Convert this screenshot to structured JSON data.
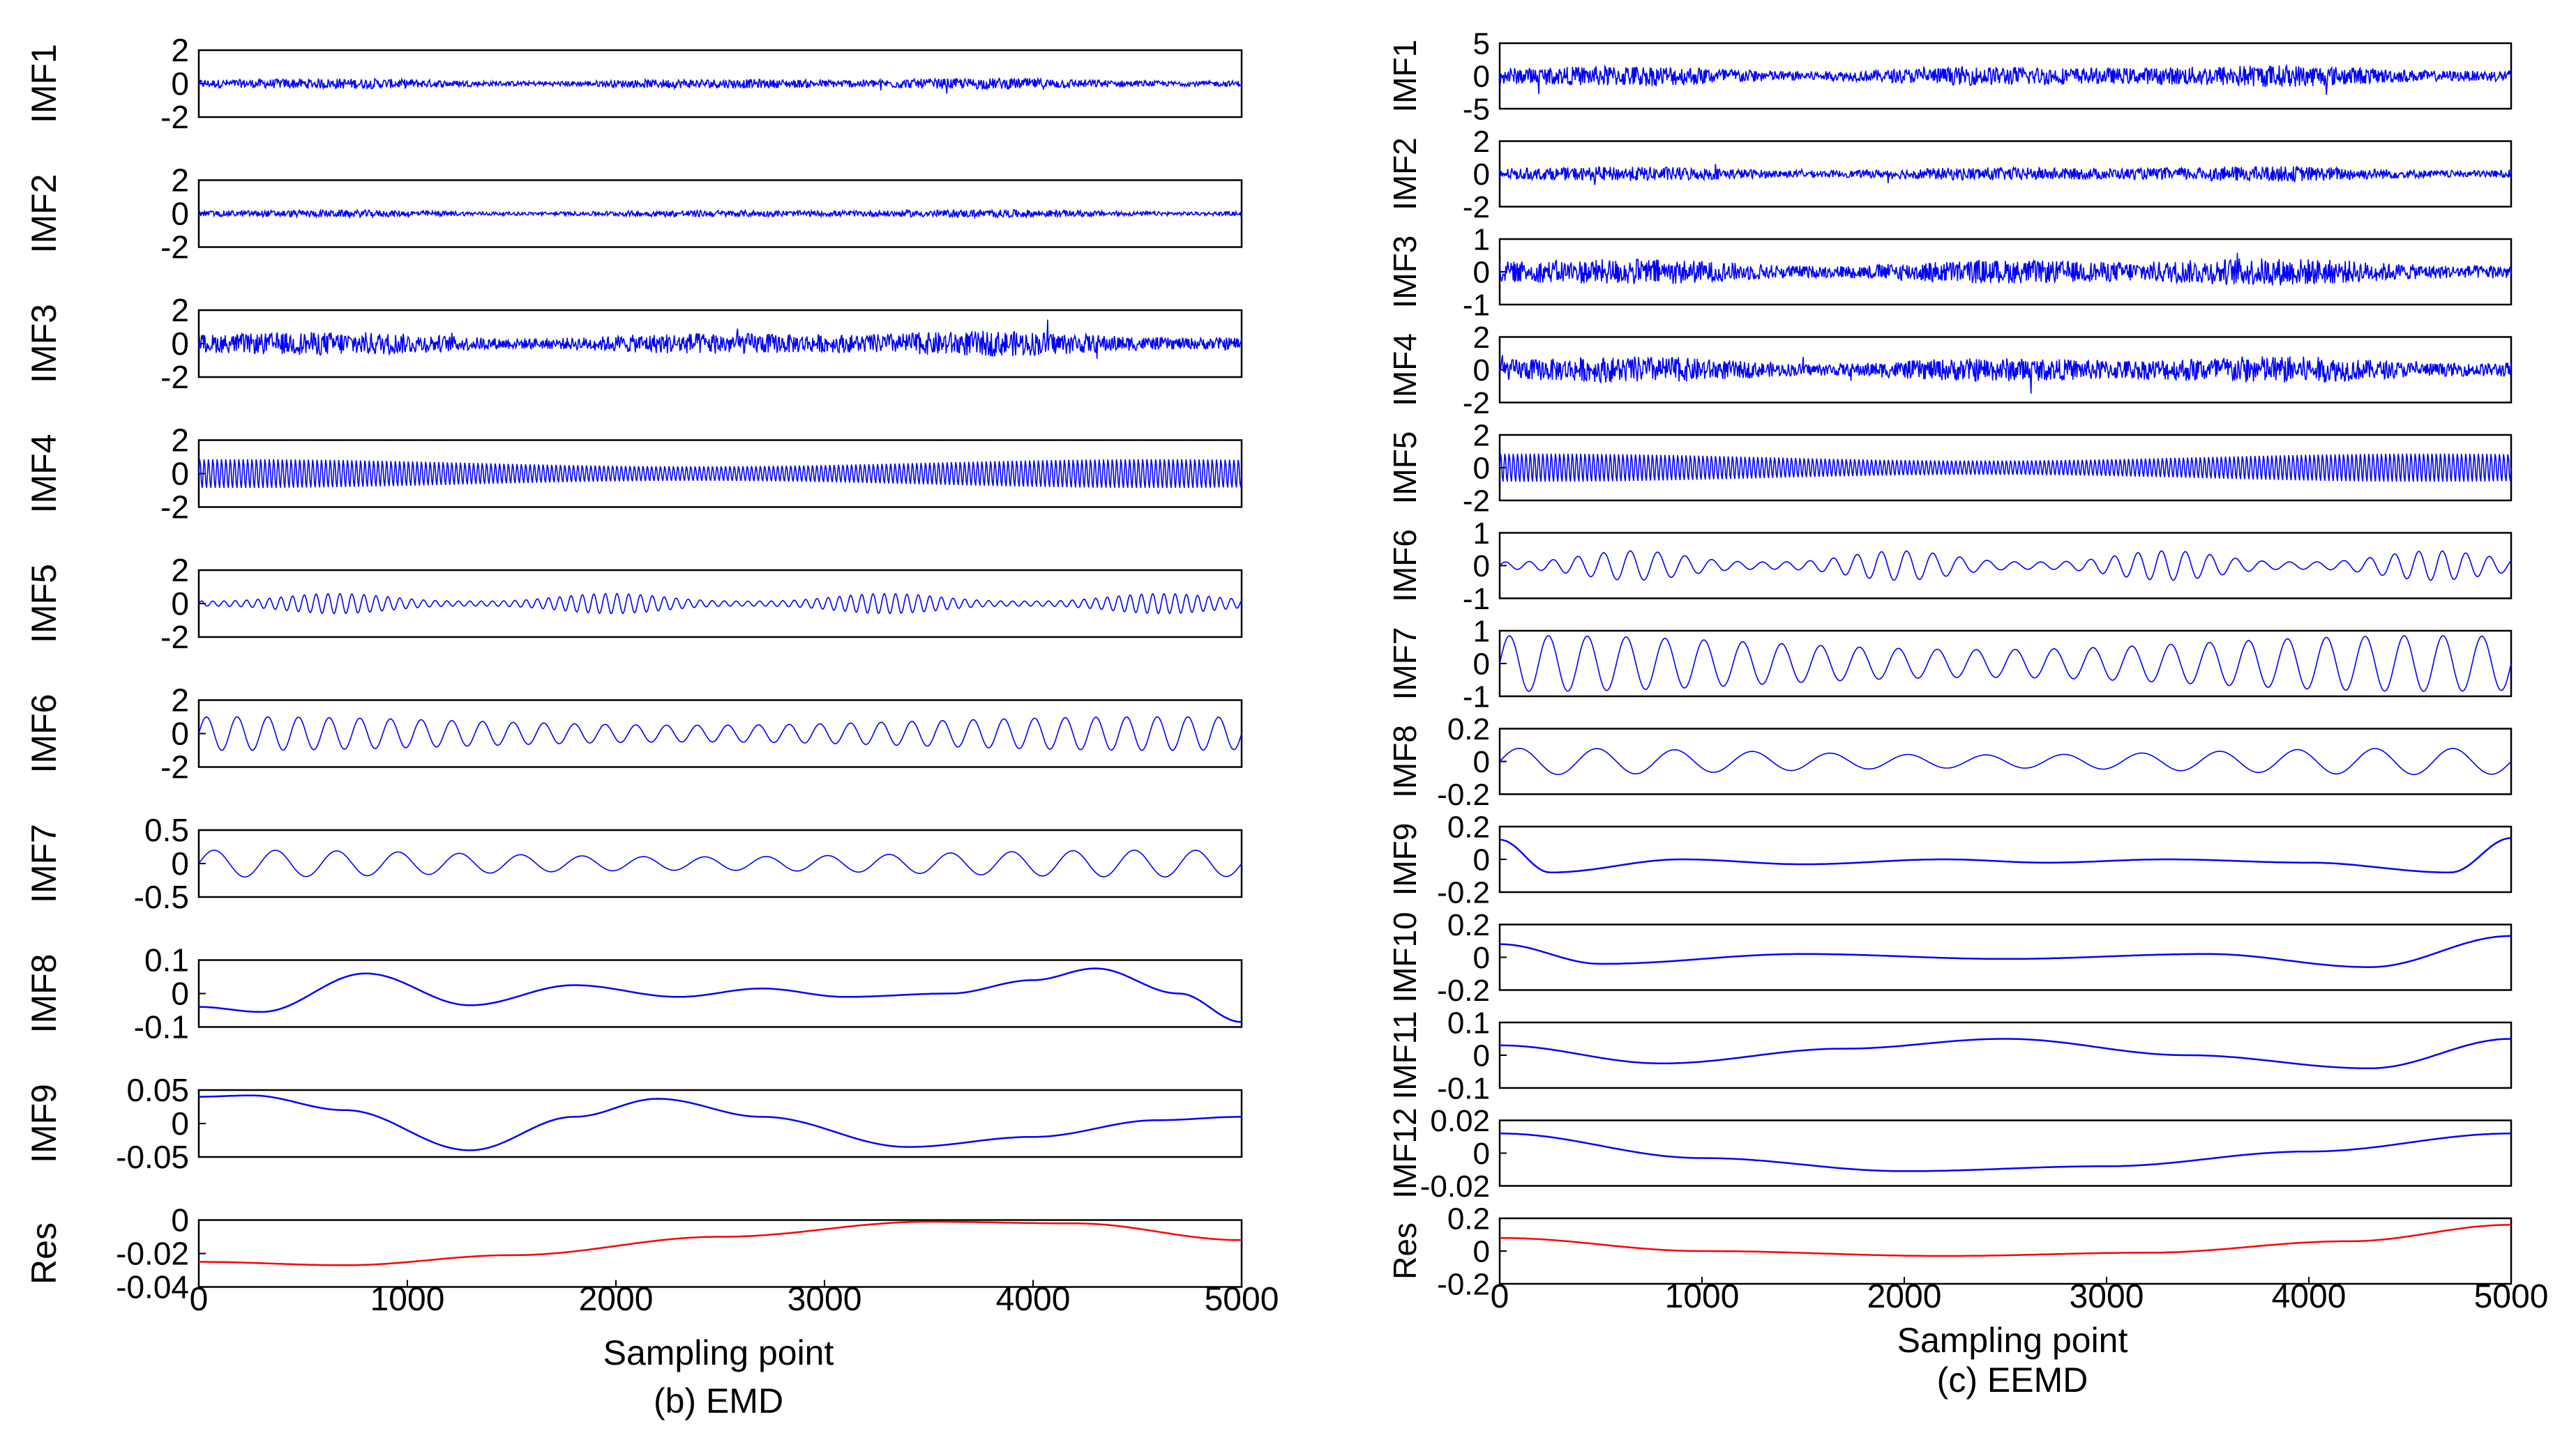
{
  "colors": {
    "signal": "#0000ff",
    "residue": "#ff0000",
    "frame": "#000000"
  },
  "panels": [
    {
      "caption": "(b) EMD",
      "xlabel": "Sampling point",
      "xticks": [
        "0",
        "1000",
        "2000",
        "3000",
        "4000",
        "5000"
      ],
      "xlim": [
        0,
        5000
      ]
    },
    {
      "caption": "(c) EEMD",
      "xlabel": "Sampling point",
      "xticks": [
        "0",
        "1000",
        "2000",
        "3000",
        "4000",
        "5000"
      ],
      "xlim": [
        0,
        5000
      ]
    }
  ],
  "chart_data": [
    {
      "type": "line",
      "title": "(b) EMD",
      "xlabel": "Sampling point",
      "xlim": [
        0,
        5000
      ],
      "series": [
        {
          "name": "IMF1",
          "ylim": [
            -2,
            2
          ],
          "yticks": [
            "2",
            "0",
            "-2"
          ],
          "amplitude": 0.35,
          "kind": "noise"
        },
        {
          "name": "IMF2",
          "ylim": [
            -2,
            2
          ],
          "yticks": [
            "2",
            "0",
            "-2"
          ],
          "amplitude": 0.25,
          "kind": "noise"
        },
        {
          "name": "IMF3",
          "ylim": [
            -2,
            2
          ],
          "yticks": [
            "2",
            "0",
            "-2"
          ],
          "amplitude": 0.8,
          "kind": "noise"
        },
        {
          "name": "IMF4",
          "ylim": [
            -2,
            2
          ],
          "yticks": [
            "2",
            "0",
            "-2"
          ],
          "amplitude": 0.9,
          "kind": "oscillation",
          "cycles": 240
        },
        {
          "name": "IMF5",
          "ylim": [
            -2,
            2
          ],
          "yticks": [
            "2",
            "0",
            "-2"
          ],
          "amplitude": 0.6,
          "kind": "bursts",
          "cycles": 90
        },
        {
          "name": "IMF6",
          "ylim": [
            -2,
            2
          ],
          "yticks": [
            "2",
            "0",
            "-2"
          ],
          "amplitude": 1.0,
          "kind": "oscillation",
          "cycles": 34
        },
        {
          "name": "IMF7",
          "ylim": [
            -0.5,
            0.5
          ],
          "yticks": [
            "0.5",
            "0",
            "-0.5"
          ],
          "amplitude": 0.2,
          "kind": "oscillation",
          "cycles": 17
        },
        {
          "name": "IMF8",
          "ylim": [
            -0.1,
            0.1
          ],
          "yticks": [
            "0.1",
            "0",
            "-0.1"
          ],
          "x": [
            0,
            300,
            800,
            1300,
            1800,
            2300,
            2700,
            3100,
            3600,
            4000,
            4300,
            4700,
            5000
          ],
          "values": [
            -0.04,
            -0.055,
            0.06,
            -0.035,
            0.025,
            -0.01,
            0.015,
            -0.01,
            0.0,
            0.04,
            0.075,
            0.0,
            -0.085
          ]
        },
        {
          "name": "IMF9",
          "ylim": [
            -0.05,
            0.05
          ],
          "yticks": [
            "0.05",
            "0",
            "-0.05"
          ],
          "x": [
            0,
            250,
            700,
            1300,
            1800,
            2200,
            2700,
            3400,
            4000,
            4600,
            5000
          ],
          "values": [
            0.04,
            0.042,
            0.02,
            -0.04,
            0.01,
            0.037,
            0.01,
            -0.035,
            -0.02,
            0.005,
            0.01
          ]
        },
        {
          "name": "Res",
          "ylim": [
            -0.04,
            0
          ],
          "yticks": [
            "0",
            "-0.02",
            "-0.04"
          ],
          "x": [
            0,
            700,
            1500,
            2500,
            3500,
            4200,
            5000
          ],
          "values": [
            -0.025,
            -0.027,
            -0.021,
            -0.01,
            -0.001,
            -0.002,
            -0.012
          ],
          "residue": true
        }
      ]
    },
    {
      "type": "line",
      "title": "(c) EEMD",
      "xlabel": "Sampling point",
      "xlim": [
        0,
        5000
      ],
      "series": [
        {
          "name": "IMF1",
          "ylim": [
            -5,
            5
          ],
          "yticks": [
            "5",
            "0",
            "-5"
          ],
          "amplitude": 1.8,
          "kind": "noise"
        },
        {
          "name": "IMF2",
          "ylim": [
            -2,
            2
          ],
          "yticks": [
            "2",
            "0",
            "-2"
          ],
          "amplitude": 0.5,
          "kind": "noise"
        },
        {
          "name": "IMF3",
          "ylim": [
            -1,
            1
          ],
          "yticks": [
            "1",
            "0",
            "-1"
          ],
          "amplitude": 0.45,
          "kind": "noise"
        },
        {
          "name": "IMF4",
          "ylim": [
            -2,
            2
          ],
          "yticks": [
            "2",
            "0",
            "-2"
          ],
          "amplitude": 0.9,
          "kind": "noise"
        },
        {
          "name": "IMF5",
          "ylim": [
            -2,
            2
          ],
          "yticks": [
            "2",
            "0",
            "-2"
          ],
          "amplitude": 0.9,
          "kind": "oscillation",
          "cycles": 240
        },
        {
          "name": "IMF6",
          "ylim": [
            -1,
            1
          ],
          "yticks": [
            "1",
            "0",
            "-1"
          ],
          "amplitude": 0.45,
          "kind": "bursts",
          "cycles": 40
        },
        {
          "name": "IMF7",
          "ylim": [
            -1,
            1
          ],
          "yticks": [
            "1",
            "0",
            "-1"
          ],
          "amplitude": 0.85,
          "kind": "oscillation",
          "cycles": 26
        },
        {
          "name": "IMF8",
          "ylim": [
            -0.2,
            0.2
          ],
          "yticks": [
            "0.2",
            "0",
            "-0.2"
          ],
          "amplitude": 0.08,
          "kind": "oscillation",
          "cycles": 13
        },
        {
          "name": "IMF9",
          "ylim": [
            -0.2,
            0.2
          ],
          "yticks": [
            "0.2",
            "0",
            "-0.2"
          ],
          "x": [
            0,
            250,
            900,
            1500,
            2200,
            2700,
            3300,
            4000,
            4700,
            5000
          ],
          "values": [
            0.12,
            -0.08,
            0.0,
            -0.03,
            0.0,
            -0.02,
            0.0,
            -0.02,
            -0.08,
            0.13
          ]
        },
        {
          "name": "IMF10",
          "ylim": [
            -0.2,
            0.2
          ],
          "yticks": [
            "0.2",
            "0",
            "-0.2"
          ],
          "x": [
            0,
            500,
            1500,
            2500,
            3500,
            4300,
            5000
          ],
          "values": [
            0.08,
            -0.04,
            0.02,
            -0.01,
            0.02,
            -0.06,
            0.13
          ]
        },
        {
          "name": "IMF11",
          "ylim": [
            -0.1,
            0.1
          ],
          "yticks": [
            "0.1",
            "0",
            "-0.1"
          ],
          "x": [
            0,
            800,
            1700,
            2500,
            3400,
            4300,
            5000
          ],
          "values": [
            0.03,
            -0.025,
            0.02,
            0.05,
            0.0,
            -0.04,
            0.05
          ]
        },
        {
          "name": "IMF12",
          "ylim": [
            -0.02,
            0.02
          ],
          "yticks": [
            "0.02",
            "0",
            "-0.02"
          ],
          "x": [
            0,
            1000,
            2000,
            3000,
            4000,
            5000
          ],
          "values": [
            0.012,
            -0.003,
            -0.011,
            -0.008,
            0.001,
            0.012
          ]
        },
        {
          "name": "Res",
          "ylim": [
            -0.2,
            0.2
          ],
          "yticks": [
            "0.2",
            "0",
            "-0.2"
          ],
          "x": [
            0,
            1000,
            2200,
            3200,
            4200,
            5000
          ],
          "values": [
            0.08,
            0.0,
            -0.03,
            -0.01,
            0.06,
            0.16
          ],
          "residue": true
        }
      ]
    }
  ]
}
